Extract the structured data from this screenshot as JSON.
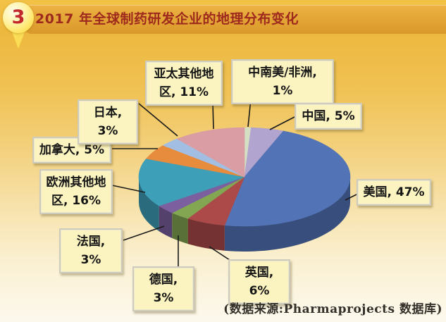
{
  "header": {
    "badge": "3",
    "title": "2017 年全球制药研发企业的地理分布变化"
  },
  "footer": {
    "source": "(数据来源:Pharmaprojects 数据库)"
  },
  "chart_data": {
    "type": "pie",
    "title": "2017 年全球制药研发企业的地理分布变化",
    "effect": "3d",
    "start_angle_deg": 0,
    "direction": "clockwise",
    "legend_position": "none",
    "slices": [
      {
        "label": "中南美/非洲",
        "value": 1,
        "display": "中南美/非洲, 1%",
        "color": "#D5DFC3"
      },
      {
        "label": "中国",
        "value": 5,
        "display": "中国, 5%",
        "color": "#B1A4CE"
      },
      {
        "label": "美国",
        "value": 47,
        "display": "美国, 47%",
        "color": "#5273B6"
      },
      {
        "label": "英国",
        "value": 6,
        "display": "英国, 6%",
        "color": "#AC4A49"
      },
      {
        "label": "德国",
        "value": 3,
        "display": "德国, 3%",
        "color": "#83A653"
      },
      {
        "label": "法国",
        "value": 3,
        "display": "法国, 3%",
        "color": "#7B5F9E"
      },
      {
        "label": "欧洲其他地区",
        "value": 16,
        "display": "欧洲其他地区, 16%",
        "color": "#3E9FB8"
      },
      {
        "label": "加拿大",
        "value": 5,
        "display": "加拿大, 5%",
        "color": "#E78B3D"
      },
      {
        "label": "日本",
        "value": 3,
        "display": "日本, 3%",
        "color": "#A2BEE2"
      },
      {
        "label": "亚太其他地区",
        "value": 11,
        "display": "亚太其他地区, 11%",
        "color": "#D99DA3"
      }
    ]
  }
}
